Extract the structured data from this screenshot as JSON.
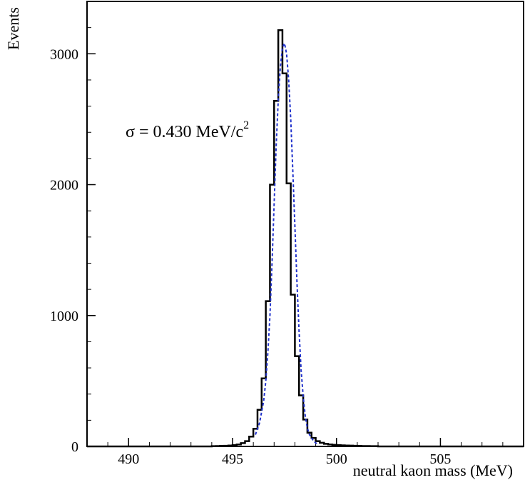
{
  "chart_data": {
    "type": "bar",
    "xlabel": "neutral kaon mass (MeV)",
    "ylabel": "Events",
    "xlim": [
      488,
      509
    ],
    "ylim": [
      0,
      3400
    ],
    "x_ticks": [
      490,
      495,
      500,
      505
    ],
    "y_ticks": [
      0,
      1000,
      2000,
      3000
    ],
    "grid": false,
    "annotation": {
      "text": "σ = 0.430 MeV/c",
      "superscript": "2"
    },
    "bin_width": 0.2,
    "series": [
      {
        "style": "histogram",
        "color": "#000000",
        "x": [
          494.0,
          494.2,
          494.4,
          494.6,
          494.8,
          495.0,
          495.2,
          495.4,
          495.6,
          495.8,
          496.0,
          496.2,
          496.4,
          496.6,
          496.8,
          497.0,
          497.2,
          497.4,
          497.6,
          497.8,
          498.0,
          498.2,
          498.4,
          498.6,
          498.8,
          499.0,
          499.2,
          499.4,
          499.6,
          499.8,
          500.0,
          500.2,
          500.4,
          500.6,
          500.8,
          501.0,
          501.2,
          501.4,
          501.6,
          501.8
        ],
        "values": [
          2,
          3,
          4,
          5,
          7,
          10,
          15,
          25,
          40,
          75,
          135,
          280,
          520,
          1110,
          2000,
          2640,
          3180,
          2850,
          2010,
          1160,
          690,
          390,
          205,
          105,
          65,
          40,
          28,
          20,
          15,
          12,
          10,
          8,
          7,
          6,
          5,
          4,
          3,
          3,
          2,
          2
        ]
      },
      {
        "style": "fit",
        "color": "#2233cc",
        "x": [
          496.0,
          496.2,
          496.4,
          496.5,
          496.6,
          496.7,
          496.8,
          496.9,
          497.0,
          497.1,
          497.2,
          497.3,
          497.4,
          497.5,
          497.6,
          497.7,
          497.8,
          497.9,
          498.0,
          498.1,
          498.2,
          498.3,
          498.4,
          498.5,
          498.6,
          498.8,
          499.0
        ],
        "values": [
          90,
          180,
          350,
          500,
          720,
          1000,
          1400,
          1850,
          2300,
          2650,
          2900,
          3050,
          3080,
          3000,
          2800,
          2500,
          2100,
          1680,
          1250,
          880,
          580,
          380,
          230,
          140,
          90,
          40,
          15
        ]
      }
    ]
  }
}
